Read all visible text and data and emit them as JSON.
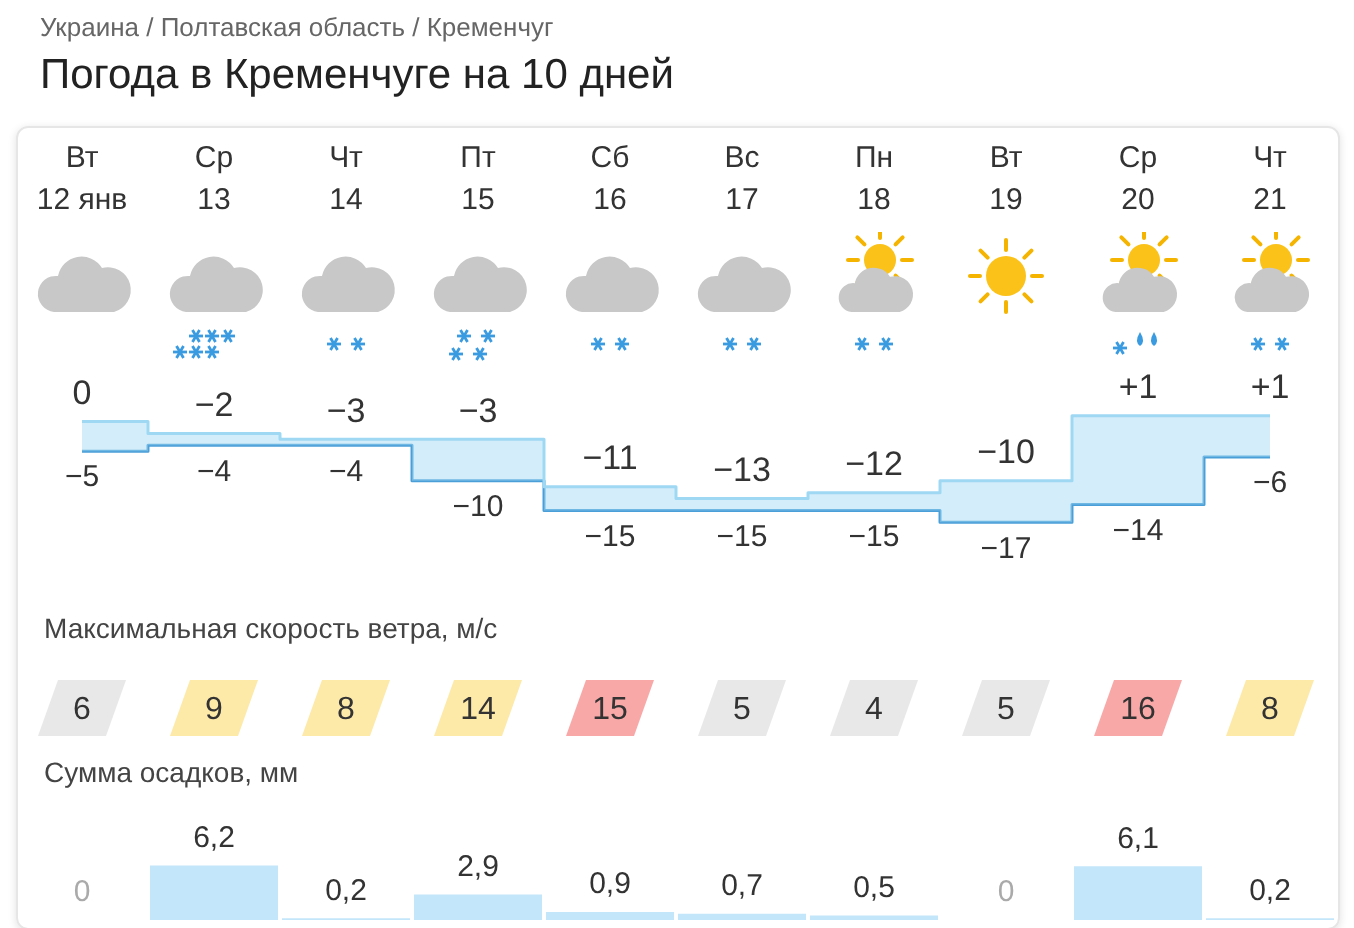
{
  "chart_data": [
    {
      "type": "step",
      "title": "Погода в Кременчуге на 10 дней",
      "annotations": [
        "Украина / Полтавская область / Кременчуг"
      ],
      "categories": [
        "Вт 12 янв",
        "Ср 13",
        "Чт 14",
        "Пт 15",
        "Сб 16",
        "Вс 17",
        "Пн 18",
        "Вт 19",
        "Ср 20",
        "Чт 21"
      ],
      "series": [
        {
          "color": "#9fd8f3",
          "values": [
            0,
            -2,
            -3,
            -3,
            -11,
            -13,
            -12,
            -10,
            1,
            1
          ],
          "value_labels": [
            "0",
            "−2",
            "−3",
            "−3",
            "−11",
            "−13",
            "−12",
            "−10",
            "+1",
            "+1"
          ]
        },
        {
          "color": "#4a9fd8",
          "values": [
            -5,
            -4,
            -4,
            -10,
            -15,
            -15,
            -15,
            -17,
            -14,
            -6
          ],
          "value_labels": [
            "−5",
            "−4",
            "−4",
            "−10",
            "−15",
            "−15",
            "−15",
            "−17",
            "−14",
            "−6"
          ]
        }
      ],
      "grid": false,
      "legend": false,
      "tick_labels": "x"
    },
    {
      "type": "other",
      "title": "Максимальная скорость ветра, м/с",
      "categories": [
        null,
        null,
        null,
        null,
        null,
        null,
        null,
        null,
        null,
        null
      ],
      "values": [
        6,
        9,
        8,
        14,
        15,
        5,
        4,
        5,
        16,
        8
      ],
      "colors": [
        "#e8e8e8",
        "#fde9a8",
        "#fde9a8",
        "#fde9a8",
        "#f9a8a8",
        "#e8e8e8",
        "#e8e8e8",
        "#e8e8e8",
        "#f9a8a8",
        "#fde9a8"
      ],
      "data_labels": true
    },
    {
      "type": "bar",
      "title": "Сумма осадков, мм",
      "categories": [
        null,
        null,
        null,
        null,
        null,
        null,
        null,
        null,
        null,
        null
      ],
      "values": [
        0,
        6.2,
        0.2,
        2.9,
        0.9,
        0.7,
        0.5,
        0,
        6.1,
        0.2
      ],
      "color": "#c4e6fb",
      "value_labels": [
        "0",
        "6,2",
        "0,2",
        "2,9",
        "0,9",
        "0,7",
        "0,5",
        "0",
        "6,1",
        "0,2"
      ],
      "grid": false,
      "legend": false,
      "tick_labels": false
    }
  ]
}
